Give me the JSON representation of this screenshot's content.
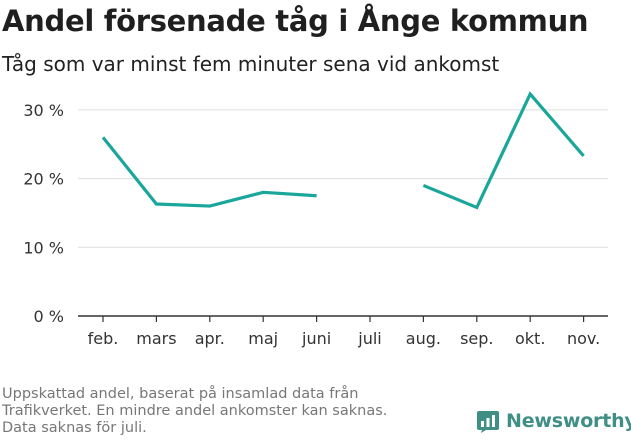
{
  "title": "Andel försenade tåg i Ånge kommun",
  "subtitle": "Tåg som var minst fem minuter sena vid ankomst",
  "footnote": {
    "line1": "Uppskattad andel, baserat på insamlad data från",
    "line2": "Trafikverket. En mindre andel ankomster kan saknas.",
    "line3": "Data saknas för juli."
  },
  "brand": {
    "name": "Newsworthy",
    "icon": "bar-chart-logo-icon"
  },
  "colors": {
    "line": "#1aa69a",
    "grid": "#dddddd",
    "axis": "#333333",
    "brand": "#3f8f86"
  },
  "chart_data": {
    "type": "line",
    "categories": [
      "feb.",
      "mars",
      "apr.",
      "maj",
      "juni",
      "juli",
      "aug.",
      "sep.",
      "okt.",
      "nov."
    ],
    "series": [
      {
        "values": [
          26,
          16.3,
          16,
          18,
          17.5,
          null,
          19,
          15.8,
          32.3,
          23.3
        ]
      }
    ],
    "yticks": [
      "0 %",
      "10 %",
      "20 %",
      "30 %"
    ],
    "ytick_values": [
      0,
      10,
      20,
      30
    ],
    "ylim": [
      0,
      35
    ],
    "grid": true,
    "legend": "none"
  }
}
